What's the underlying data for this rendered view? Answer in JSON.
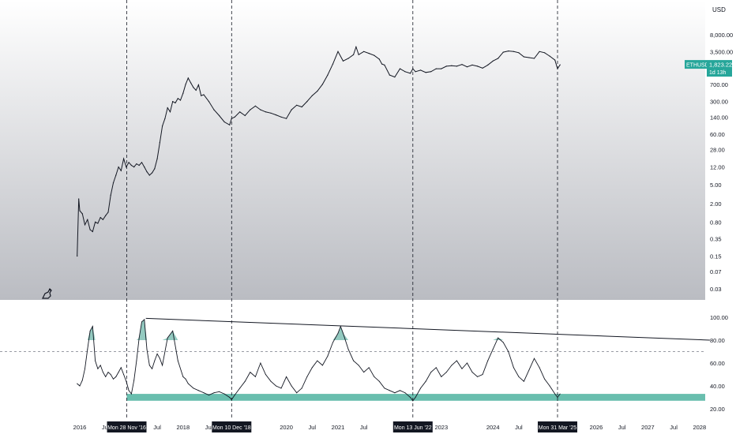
{
  "chart_data": [
    {
      "type": "line",
      "panel": "price",
      "scale": "log",
      "currency": "USD",
      "ylim": [
        0.03,
        8000
      ],
      "y_ticks": [
        "8,000.00",
        "3,500.00",
        "1,823.22",
        "700.00",
        "300.00",
        "140.00",
        "60.00",
        "28.00",
        "12.00",
        "5.00",
        "2.00",
        "0.80",
        "0.35",
        "0.15",
        "0.07",
        "0.03"
      ],
      "y_tick_values": [
        8000,
        3500,
        1823.22,
        700,
        300,
        140,
        60,
        28,
        12,
        5,
        2,
        0.8,
        0.35,
        0.15,
        0.07,
        0.03
      ],
      "series": [
        {
          "name": "ETHUSD",
          "x": [
            2015.95,
            2015.98,
            2016.0,
            2016.05,
            2016.1,
            2016.15,
            2016.2,
            2016.25,
            2016.3,
            2016.35,
            2016.4,
            2016.45,
            2016.5,
            2016.55,
            2016.6,
            2016.65,
            2016.7,
            2016.75,
            2016.8,
            2016.85,
            2016.9,
            2016.95,
            2017.0,
            2017.05,
            2017.1,
            2017.15,
            2017.2,
            2017.25,
            2017.3,
            2017.35,
            2017.4,
            2017.45,
            2017.5,
            2017.55,
            2017.6,
            2017.65,
            2017.7,
            2017.75,
            2017.8,
            2017.85,
            2017.9,
            2017.95,
            2018.0,
            2018.05,
            2018.1,
            2018.15,
            2018.2,
            2018.25,
            2018.3,
            2018.35,
            2018.4,
            2018.5,
            2018.6,
            2018.7,
            2018.8,
            2018.9,
            2018.94,
            2019.0,
            2019.1,
            2019.2,
            2019.3,
            2019.4,
            2019.5,
            2019.6,
            2019.7,
            2019.8,
            2019.9,
            2020.0,
            2020.1,
            2020.2,
            2020.3,
            2020.4,
            2020.5,
            2020.6,
            2020.7,
            2020.8,
            2020.9,
            2021.0,
            2021.1,
            2021.2,
            2021.3,
            2021.35,
            2021.4,
            2021.5,
            2021.6,
            2021.7,
            2021.8,
            2021.85,
            2021.9,
            2022.0,
            2022.1,
            2022.2,
            2022.3,
            2022.4,
            2022.45,
            2022.5,
            2022.6,
            2022.7,
            2022.8,
            2022.9,
            2023.0,
            2023.1,
            2023.2,
            2023.3,
            2023.4,
            2023.5,
            2023.6,
            2023.7,
            2023.8,
            2023.9,
            2024.0,
            2024.1,
            2024.2,
            2024.3,
            2024.4,
            2024.5,
            2024.6,
            2024.7,
            2024.8,
            2024.9,
            2025.0,
            2025.1,
            2025.2,
            2025.25,
            2025.3
          ],
          "values": [
            0.15,
            2.5,
            1.4,
            1.2,
            0.7,
            0.9,
            0.55,
            0.5,
            0.8,
            0.75,
            1.0,
            0.9,
            1.1,
            1.3,
            3.0,
            5.5,
            8.0,
            12,
            10,
            18,
            12,
            15,
            13,
            12,
            14,
            13,
            15,
            12,
            9.5,
            8,
            9,
            11,
            18,
            40,
            90,
            130,
            220,
            180,
            300,
            280,
            350,
            320,
            450,
            700,
            950,
            750,
            600,
            520,
            680,
            400,
            420,
            300,
            200,
            150,
            110,
            95,
            130,
            140,
            180,
            150,
            200,
            240,
            200,
            180,
            170,
            155,
            140,
            130,
            200,
            250,
            230,
            300,
            400,
            500,
            700,
            1100,
            1900,
            3500,
            2200,
            2500,
            3000,
            4400,
            3000,
            3500,
            3200,
            2900,
            2400,
            1900,
            1800,
            1100,
            1000,
            1500,
            1300,
            1200,
            1500,
            1300,
            1400,
            1250,
            1300,
            1500,
            1500,
            1700,
            1750,
            1700,
            1850,
            1650,
            1800,
            1700,
            1550,
            1800,
            2200,
            2500,
            3400,
            3600,
            3500,
            3300,
            2700,
            2600,
            2500,
            3500,
            3300,
            2800,
            2300,
            1500,
            1823.22
          ]
        }
      ],
      "last_price_label": "ETHUSD",
      "last_price_value": "1,823.22",
      "bar_countdown": "1d 13h"
    },
    {
      "type": "line",
      "panel": "oscillator",
      "ylim": [
        20,
        100
      ],
      "y_ticks": [
        "100.00",
        "80.00",
        "60.00",
        "40.00",
        "20.00"
      ],
      "y_tick_values": [
        100,
        80,
        60,
        40,
        20
      ],
      "overbought_level": 70,
      "oversold_zone": [
        27,
        33
      ],
      "series": [
        {
          "name": "oscillator",
          "x": [
            2015.95,
            2016.0,
            2016.05,
            2016.1,
            2016.15,
            2016.2,
            2016.25,
            2016.3,
            2016.35,
            2016.4,
            2016.45,
            2016.5,
            2016.55,
            2016.6,
            2016.65,
            2016.7,
            2016.75,
            2016.8,
            2016.85,
            2016.9,
            2016.95,
            2017.0,
            2017.05,
            2017.1,
            2017.15,
            2017.2,
            2017.25,
            2017.3,
            2017.35,
            2017.4,
            2017.45,
            2017.5,
            2017.55,
            2017.6,
            2017.7,
            2017.8,
            2017.9,
            2018.0,
            2018.05,
            2018.1,
            2018.2,
            2018.3,
            2018.4,
            2018.5,
            2018.6,
            2018.7,
            2018.8,
            2018.9,
            2018.94,
            2019.0,
            2019.1,
            2019.2,
            2019.3,
            2019.4,
            2019.5,
            2019.6,
            2019.7,
            2019.8,
            2019.9,
            2020.0,
            2020.1,
            2020.2,
            2020.3,
            2020.4,
            2020.5,
            2020.6,
            2020.7,
            2020.8,
            2020.9,
            2021.0,
            2021.05,
            2021.1,
            2021.2,
            2021.3,
            2021.4,
            2021.5,
            2021.6,
            2021.7,
            2021.8,
            2021.9,
            2022.0,
            2022.1,
            2022.2,
            2022.3,
            2022.4,
            2022.45,
            2022.5,
            2022.6,
            2022.7,
            2022.8,
            2022.9,
            2023.0,
            2023.1,
            2023.2,
            2023.3,
            2023.4,
            2023.5,
            2023.6,
            2023.7,
            2023.8,
            2023.9,
            2024.0,
            2024.1,
            2024.2,
            2024.3,
            2024.4,
            2024.5,
            2024.6,
            2024.7,
            2024.8,
            2024.9,
            2025.0,
            2025.1,
            2025.2,
            2025.25,
            2025.3
          ],
          "values": [
            42,
            40,
            45,
            55,
            72,
            88,
            92,
            62,
            55,
            58,
            52,
            48,
            52,
            50,
            46,
            48,
            52,
            56,
            50,
            44,
            36,
            33,
            45,
            62,
            82,
            96,
            98,
            72,
            58,
            55,
            62,
            68,
            64,
            58,
            82,
            88,
            62,
            48,
            46,
            42,
            38,
            36,
            34,
            32,
            34,
            35,
            33,
            30,
            28,
            32,
            38,
            44,
            52,
            48,
            60,
            50,
            44,
            40,
            38,
            48,
            40,
            34,
            38,
            48,
            56,
            62,
            58,
            66,
            78,
            86,
            92,
            86,
            72,
            62,
            58,
            52,
            56,
            48,
            44,
            38,
            36,
            34,
            36,
            34,
            30,
            27,
            30,
            38,
            44,
            52,
            56,
            48,
            52,
            58,
            62,
            55,
            60,
            52,
            48,
            50,
            62,
            72,
            82,
            78,
            70,
            56,
            48,
            44,
            54,
            64,
            56,
            46,
            40,
            33,
            30,
            33
          ],
          "x_ticks": [
            "2016",
            "Jul",
            "Jul",
            "2018",
            "Jul",
            "2020",
            "Jul",
            "2021",
            "Jul",
            "2023",
            "2024",
            "Jul",
            "2026",
            "Jul",
            "2027",
            "Jul",
            "2028"
          ],
          "x_tick_values": [
            2016.0,
            2016.5,
            2017.5,
            2018.0,
            2018.5,
            2020.0,
            2020.5,
            2021.0,
            2021.5,
            2023.0,
            2024.0,
            2024.5,
            2026.0,
            2026.5,
            2027.0,
            2027.5,
            2028.0
          ]
        }
      ],
      "trendline": {
        "start": [
          2017.28,
          99
        ],
        "end": [
          2028.2,
          80
        ]
      },
      "cycle_lows": [
        {
          "x": 2016.91,
          "label": "Mon 28 Nov '16"
        },
        {
          "x": 2018.94,
          "label": "Mon 10 Dec '18"
        },
        {
          "x": 2022.45,
          "label": "Mon 13 Jun '22"
        },
        {
          "x": 2025.25,
          "label": "Mon 31 Mar '25"
        }
      ]
    }
  ],
  "page": {
    "currency_label": "USD"
  }
}
